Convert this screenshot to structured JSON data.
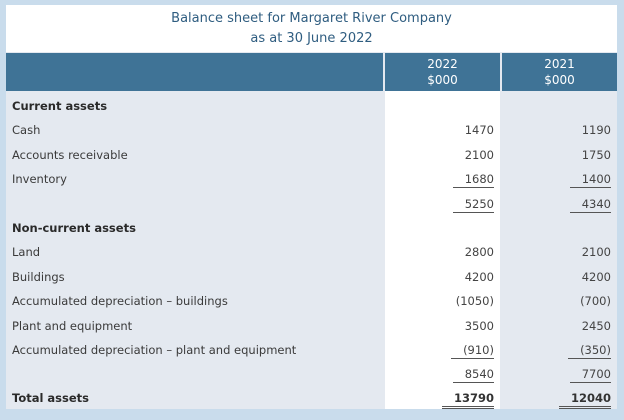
{
  "title": {
    "line1": "Balance sheet for Margaret River Company",
    "line2": "as at 30 June 2022"
  },
  "header": {
    "col_2022": {
      "year": "2022",
      "unit": "$000"
    },
    "col_2021": {
      "year": "2021",
      "unit": "$000"
    }
  },
  "rows": [
    {
      "label": "Current assets",
      "v2022": "",
      "v2021": ""
    },
    {
      "label": "Cash",
      "v2022": "1470",
      "v2021": "1190"
    },
    {
      "label": "Accounts receivable",
      "v2022": "2100",
      "v2021": "1750"
    },
    {
      "label": "Inventory",
      "v2022": "1680",
      "v2021": "1400"
    },
    {
      "label": "",
      "v2022": "5250",
      "v2021": "4340"
    },
    {
      "label": "Non-current assets",
      "v2022": "",
      "v2021": ""
    },
    {
      "label": "Land",
      "v2022": "2800",
      "v2021": "2100"
    },
    {
      "label": "Buildings",
      "v2022": "4200",
      "v2021": "4200"
    },
    {
      "label": "Accumulated depreciation – buildings",
      "v2022": "(1050)",
      "v2021": "(700)"
    },
    {
      "label": "Plant and equipment",
      "v2022": "3500",
      "v2021": "2450"
    },
    {
      "label": "Accumulated depreciation – plant and equipment",
      "v2022": "(910)",
      "v2021": "(350)"
    },
    {
      "label": "",
      "v2022": "8540",
      "v2021": "7700"
    },
    {
      "label": "Total assets",
      "v2022": "13790",
      "v2021": "12040"
    }
  ],
  "colors": {
    "header_bg": "#3f7396",
    "title_text": "#2f5d80",
    "page_bg": "#c9dcec",
    "shaded_bg": "#e4e9f0"
  }
}
